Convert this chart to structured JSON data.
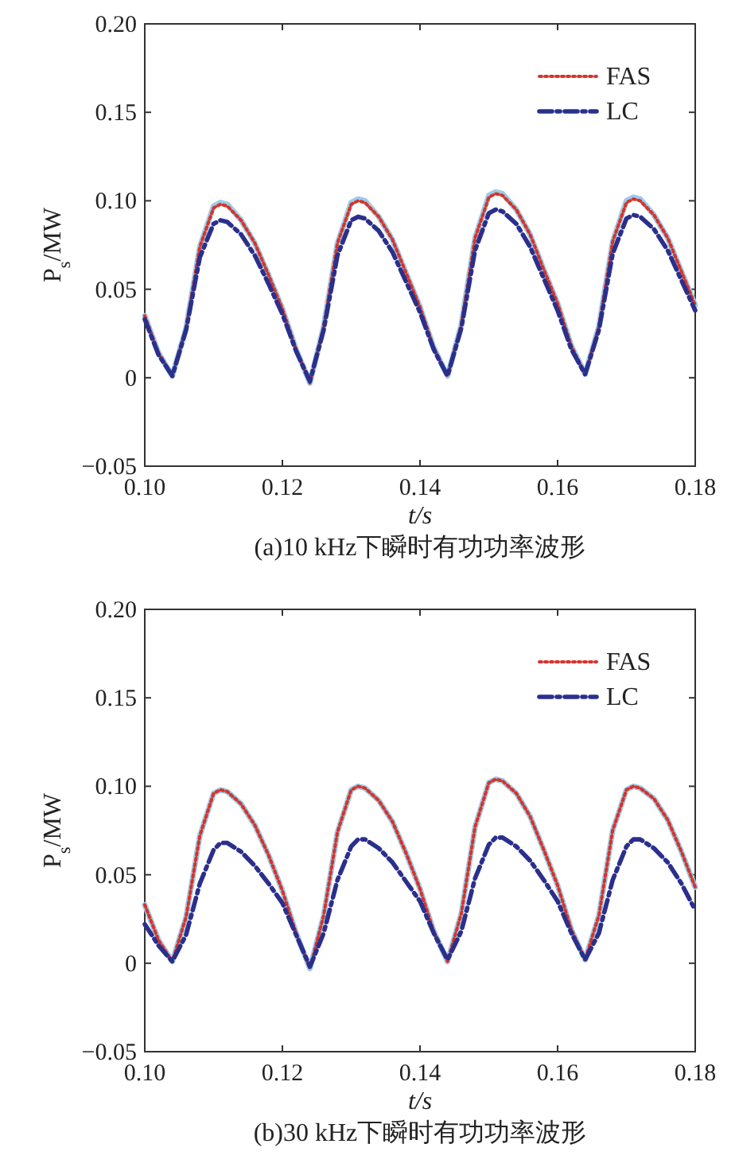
{
  "chart_data": [
    {
      "type": "line",
      "xlabel": "t/s",
      "ylabel": "P$_{s}$/MW",
      "annotations": [
        "(a)10 kHz下瞬时有功功率波形"
      ],
      "legend": "top right",
      "xlim": [
        0.1,
        0.18
      ],
      "ylim": [
        -0.05,
        0.2
      ],
      "xticks": [
        {
          "value": 0.1,
          "label": "0.10"
        },
        {
          "value": 0.12,
          "label": "0.12"
        },
        {
          "value": 0.14,
          "label": "0.14"
        },
        {
          "value": 0.16,
          "label": "0.16"
        },
        {
          "value": 0.18,
          "label": "0.18"
        }
      ],
      "yticks": [
        {
          "value": -0.05,
          "label": "−0.05"
        },
        {
          "value": 0,
          "label": "0"
        },
        {
          "value": 0.05,
          "label": "0.05"
        },
        {
          "value": 0.1,
          "label": "0.10"
        },
        {
          "value": 0.15,
          "label": "0.15"
        },
        {
          "value": 0.2,
          "label": "0.20"
        }
      ],
      "x": [
        0.1,
        0.102,
        0.104,
        0.106,
        0.108,
        0.11,
        0.111,
        0.112,
        0.114,
        0.116,
        0.118,
        0.12,
        0.122,
        0.124,
        0.126,
        0.128,
        0.13,
        0.131,
        0.132,
        0.134,
        0.136,
        0.138,
        0.14,
        0.142,
        0.144,
        0.146,
        0.148,
        0.15,
        0.151,
        0.152,
        0.154,
        0.156,
        0.158,
        0.16,
        0.162,
        0.164,
        0.166,
        0.168,
        0.17,
        0.171,
        0.172,
        0.174,
        0.176,
        0.178,
        0.18
      ],
      "series": [
        {
          "color": "#9ccbe9",
          "line_style": "solid",
          "values": [
            0.035,
            0.014,
            0.001,
            0.028,
            0.074,
            0.097,
            0.099,
            0.098,
            0.089,
            0.076,
            0.058,
            0.039,
            0.016,
            -0.003,
            0.029,
            0.076,
            0.099,
            0.101,
            0.1,
            0.091,
            0.078,
            0.059,
            0.04,
            0.017,
            0.001,
            0.03,
            0.079,
            0.103,
            0.105,
            0.104,
            0.095,
            0.081,
            0.061,
            0.042,
            0.018,
            0.002,
            0.029,
            0.077,
            0.1,
            0.102,
            0.101,
            0.092,
            0.079,
            0.06,
            0.041
          ]
        },
        {
          "name": "FAS",
          "color": "#d6342a",
          "line_style": "dotted",
          "values": [
            0.035,
            0.014,
            0.001,
            0.028,
            0.074,
            0.096,
            0.098,
            0.097,
            0.089,
            0.076,
            0.058,
            0.039,
            0.016,
            -0.003,
            0.029,
            0.076,
            0.098,
            0.1,
            0.099,
            0.091,
            0.078,
            0.059,
            0.04,
            0.017,
            0.001,
            0.03,
            0.079,
            0.102,
            0.104,
            0.103,
            0.095,
            0.081,
            0.061,
            0.042,
            0.018,
            0.002,
            0.029,
            0.077,
            0.099,
            0.101,
            0.1,
            0.092,
            0.079,
            0.06,
            0.041
          ]
        },
        {
          "name": "LC",
          "color": "#2b2f8c",
          "line_style": "dashed",
          "values": [
            0.033,
            0.013,
            0.001,
            0.027,
            0.068,
            0.087,
            0.089,
            0.088,
            0.081,
            0.069,
            0.053,
            0.036,
            0.015,
            -0.002,
            0.027,
            0.069,
            0.089,
            0.091,
            0.09,
            0.083,
            0.071,
            0.054,
            0.037,
            0.016,
            0.001,
            0.028,
            0.072,
            0.093,
            0.095,
            0.094,
            0.087,
            0.074,
            0.056,
            0.038,
            0.016,
            0.002,
            0.027,
            0.07,
            0.09,
            0.092,
            0.091,
            0.084,
            0.072,
            0.055,
            0.038
          ]
        }
      ]
    },
    {
      "type": "line",
      "xlabel": "t/s",
      "ylabel": "P$_{s}$/MW",
      "annotations": [
        "(b)30 kHz下瞬时有功功率波形"
      ],
      "legend": "top right",
      "xlim": [
        0.1,
        0.18
      ],
      "ylim": [
        -0.05,
        0.2
      ],
      "xticks": [
        {
          "value": 0.1,
          "label": "0.10"
        },
        {
          "value": 0.12,
          "label": "0.12"
        },
        {
          "value": 0.14,
          "label": "0.14"
        },
        {
          "value": 0.16,
          "label": "0.16"
        },
        {
          "value": 0.18,
          "label": "0.18"
        }
      ],
      "yticks": [
        {
          "value": -0.05,
          "label": "−0.05"
        },
        {
          "value": 0,
          "label": "0"
        },
        {
          "value": 0.05,
          "label": "0.05"
        },
        {
          "value": 0.1,
          "label": "0.10"
        },
        {
          "value": 0.15,
          "label": "0.15"
        },
        {
          "value": 0.2,
          "label": "0.20"
        }
      ],
      "x": [
        0.1,
        0.102,
        0.104,
        0.106,
        0.108,
        0.11,
        0.111,
        0.112,
        0.114,
        0.116,
        0.118,
        0.12,
        0.122,
        0.124,
        0.126,
        0.128,
        0.13,
        0.131,
        0.132,
        0.134,
        0.136,
        0.138,
        0.14,
        0.142,
        0.144,
        0.146,
        0.148,
        0.15,
        0.151,
        0.152,
        0.154,
        0.156,
        0.158,
        0.16,
        0.162,
        0.164,
        0.166,
        0.168,
        0.17,
        0.171,
        0.172,
        0.174,
        0.176,
        0.178,
        0.18
      ],
      "series": [
        {
          "color": "#9ccbe9",
          "line_style": "solid",
          "values": [
            0.033,
            0.013,
            0.001,
            0.026,
            0.072,
            0.096,
            0.098,
            0.097,
            0.09,
            0.078,
            0.061,
            0.041,
            0.017,
            -0.003,
            0.027,
            0.074,
            0.098,
            0.1,
            0.099,
            0.092,
            0.08,
            0.062,
            0.042,
            0.018,
            0.001,
            0.028,
            0.077,
            0.102,
            0.104,
            0.103,
            0.096,
            0.083,
            0.064,
            0.044,
            0.019,
            0.002,
            0.027,
            0.075,
            0.098,
            0.1,
            0.099,
            0.093,
            0.081,
            0.063,
            0.043
          ]
        },
        {
          "name": "FAS",
          "color": "#d6342a",
          "line_style": "dotted",
          "values": [
            0.033,
            0.013,
            0.001,
            0.026,
            0.072,
            0.096,
            0.098,
            0.097,
            0.09,
            0.078,
            0.061,
            0.041,
            0.017,
            -0.003,
            0.027,
            0.074,
            0.098,
            0.1,
            0.099,
            0.092,
            0.08,
            0.062,
            0.042,
            0.018,
            0.001,
            0.028,
            0.077,
            0.102,
            0.104,
            0.103,
            0.096,
            0.083,
            0.064,
            0.044,
            0.019,
            0.002,
            0.027,
            0.075,
            0.098,
            0.1,
            0.099,
            0.093,
            0.081,
            0.063,
            0.043
          ]
        },
        {
          "name": "LC",
          "color": "#2b2f8c",
          "line_style": "dashed",
          "values": [
            0.022,
            0.01,
            0.001,
            0.016,
            0.045,
            0.064,
            0.068,
            0.068,
            0.063,
            0.055,
            0.045,
            0.034,
            0.016,
            -0.002,
            0.017,
            0.047,
            0.066,
            0.07,
            0.07,
            0.065,
            0.057,
            0.046,
            0.035,
            0.017,
            0.002,
            0.018,
            0.048,
            0.067,
            0.071,
            0.071,
            0.066,
            0.058,
            0.047,
            0.035,
            0.017,
            0.002,
            0.017,
            0.047,
            0.066,
            0.07,
            0.07,
            0.065,
            0.057,
            0.045,
            0.03
          ]
        }
      ]
    }
  ]
}
